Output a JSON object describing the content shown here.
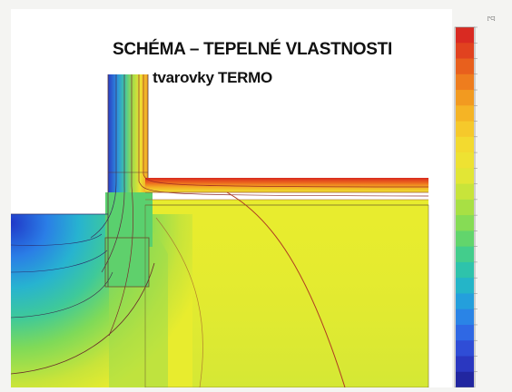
{
  "title": {
    "line1": "SCHÉMA – TEPELNÉ VLASTNOSTI",
    "line2": "tvarovky TERMO"
  },
  "scale": {
    "unit": "[°C]",
    "colors": [
      "#d92a22",
      "#e1421f",
      "#e8601d",
      "#ee7d1e",
      "#f29a20",
      "#f5b425",
      "#f6c92b",
      "#f3da2f",
      "#eee232",
      "#e2e635",
      "#c8e43a",
      "#a8e044",
      "#86dc55",
      "#62d56c",
      "#43cd8c",
      "#2ec3ab",
      "#24b5c8",
      "#249fdc",
      "#2a84e6",
      "#2f68e4",
      "#2f4dd6",
      "#2a37c0",
      "#2126a0"
    ]
  },
  "colors": {
    "ground_main": "#e8ec2e",
    "wall_top": "#f3e13a",
    "slab_hot": "#e0402a",
    "isoline": "#8c2a2a"
  }
}
